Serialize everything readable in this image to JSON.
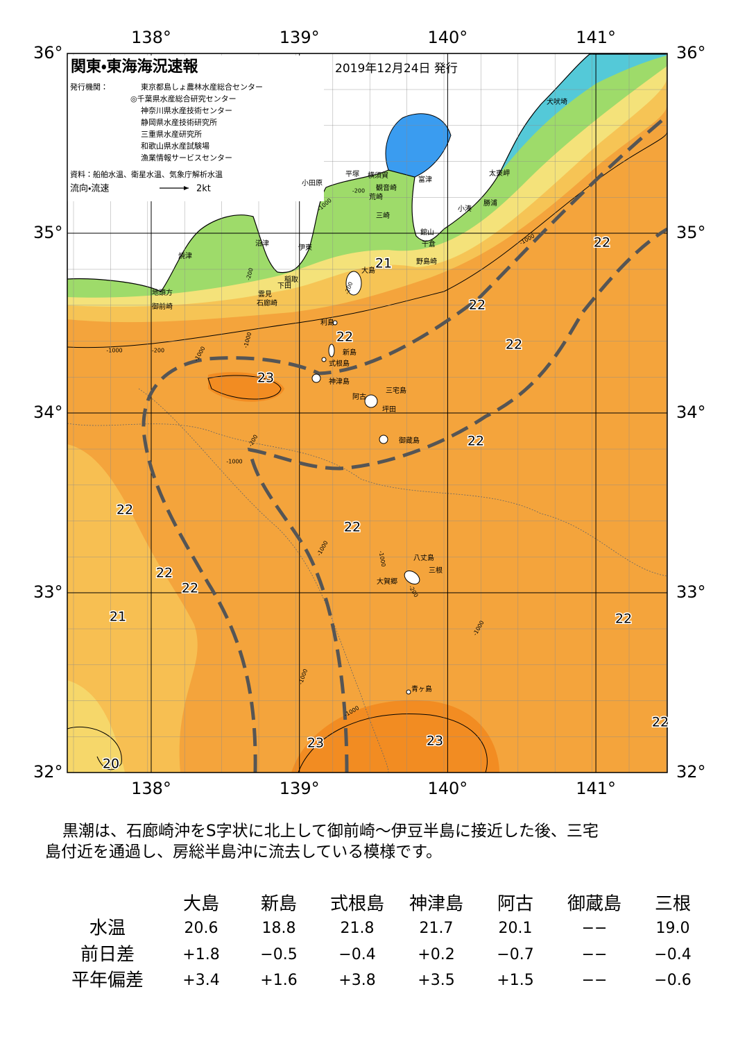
{
  "header": {
    "title": "関東・東海海況速報",
    "date": "2019年12月24日 発行",
    "publisher_label": "発行機関：",
    "publishers": [
      "東京都島しょ農林水産総合センター",
      "◎千葉県水産総合研究センター",
      "神奈川県水産技術センター",
      "静岡県水産技術研究所",
      "三重県水産研究所",
      "和歌山県水産試験場",
      "漁業情報サービスセンター"
    ],
    "source": "資料：船舶水温、衛星水温、気象庁解析水温",
    "legend_label": "流向・流速",
    "legend_speed": "2kt"
  },
  "map": {
    "lon_ticks": [
      {
        "value": 138,
        "label": "138°"
      },
      {
        "value": 139,
        "label": "139°"
      },
      {
        "value": 140,
        "label": "140°"
      },
      {
        "value": 141,
        "label": "141°"
      }
    ],
    "lat_ticks": [
      {
        "value": 36,
        "label": "36°"
      },
      {
        "value": 35,
        "label": "35°"
      },
      {
        "value": 34,
        "label": "34°"
      },
      {
        "value": 33,
        "label": "33°"
      },
      {
        "value": 32,
        "label": "32°"
      }
    ],
    "places": [
      "犬吠埼",
      "太東岬",
      "勝浦",
      "小湊",
      "富津",
      "横須賀",
      "平塚",
      "観音崎",
      "荒崎",
      "小田原",
      "三崎",
      "館山",
      "千倉",
      "野島崎",
      "沼津",
      "伊東",
      "焼津",
      "稲取",
      "下田",
      "雲見",
      "石廊崎",
      "地頭方",
      "御前崎",
      "大島",
      "利島",
      "新島",
      "式根島",
      "神津島",
      "三宅島",
      "阿古",
      "坪田",
      "御蔵島",
      "八丈島",
      "三根",
      "大賀郷",
      "青ヶ島"
    ],
    "isotherm_labels": [
      "21",
      "22",
      "22",
      "22",
      "22",
      "23",
      "22",
      "22",
      "22",
      "22",
      "22",
      "21",
      "22",
      "23",
      "23",
      "22",
      "20"
    ],
    "depth_labels": [
      "-200",
      "-1000",
      "-200",
      "-200",
      "-1000",
      "-1000",
      "-200",
      "-1000",
      "-200",
      "-1000",
      "-1000",
      "-1000",
      "-200",
      "-1000",
      "-1000",
      "-1000",
      "-1000"
    ]
  },
  "description": [
    "黒潮は、石廊崎沖をS字状に北上して御前崎～伊豆半島に接近した後、三宅",
    "島付近を通過し、房総半島沖に流去している模様です。"
  ],
  "table": {
    "columns": [
      "大島",
      "新島",
      "式根島",
      "神津島",
      "阿古",
      "御蔵島",
      "三根"
    ],
    "rows": [
      {
        "label": "水温",
        "cells": [
          "20.6",
          "18.8",
          "21.8",
          "21.7",
          "20.1",
          "−−",
          "19.0"
        ]
      },
      {
        "label": "前日差",
        "cells": [
          "+1.8",
          "−0.5",
          "−0.4",
          "+0.2",
          "−0.7",
          "−−",
          "−0.4"
        ]
      },
      {
        "label": "平年偏差",
        "cells": [
          "+3.4",
          "+1.6",
          "+3.8",
          "+3.5",
          "+1.5",
          "−−",
          "−0.6"
        ]
      }
    ]
  }
}
